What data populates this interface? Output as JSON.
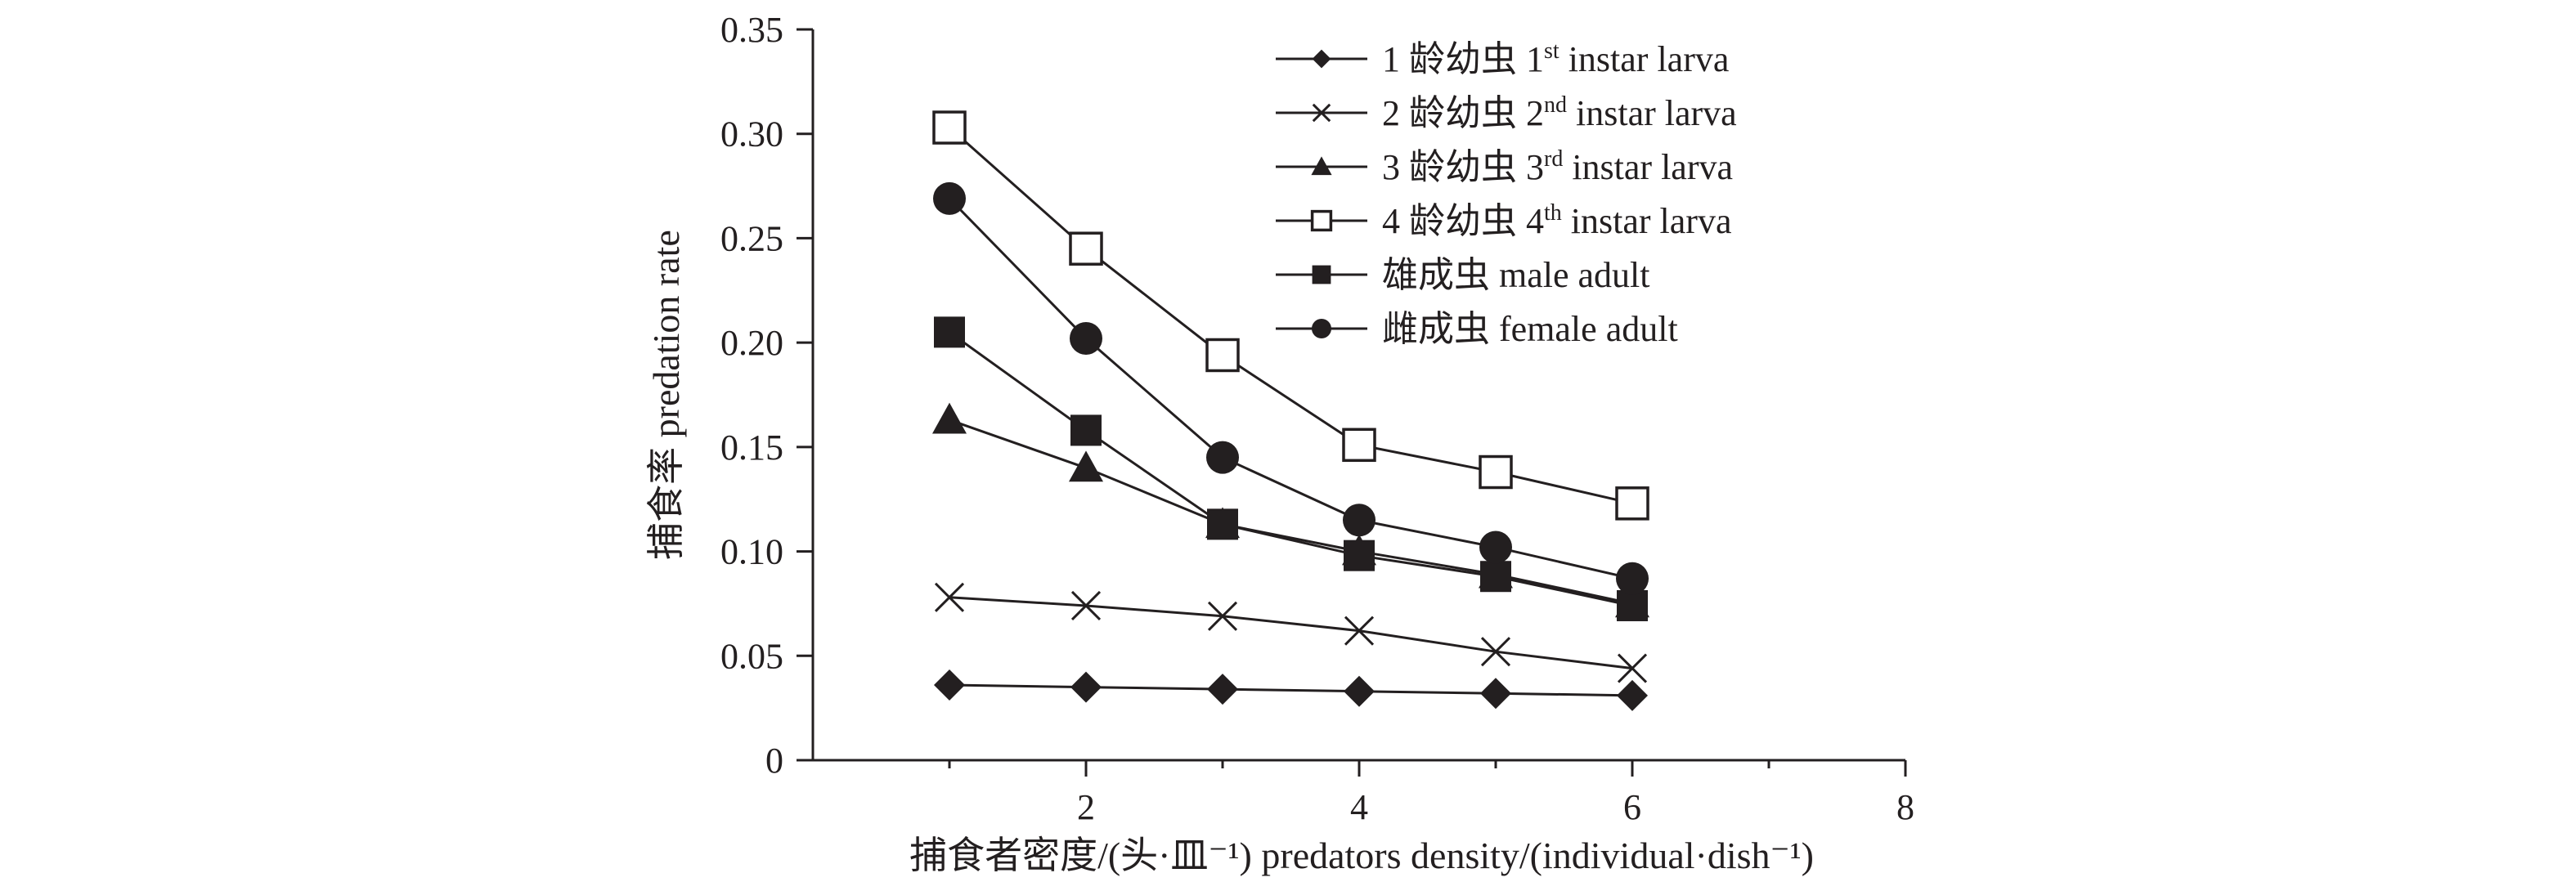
{
  "chart_data": {
    "type": "line",
    "title": "",
    "xlabel": "捕食者密度/(头·皿⁻¹) predators density/(individual·dish⁻¹)",
    "ylabel": "捕食率 predation rate",
    "xlim": [
      0,
      8
    ],
    "ylim": [
      0,
      0.35
    ],
    "x_ticks": [
      "2",
      "4",
      "6",
      "8"
    ],
    "y_ticks": [
      "0",
      "0.05",
      "0.10",
      "0.15",
      "0.20",
      "0.25",
      "0.30",
      "0.35"
    ],
    "grid": false,
    "legend_position": "top-right",
    "x": [
      1,
      2,
      3,
      4,
      5,
      6
    ],
    "series": [
      {
        "name_main": "1 龄幼虫 1",
        "name_sup": "st",
        "name_tail": " instar larva",
        "marker": "diamond-filled",
        "values": [
          0.036,
          0.035,
          0.034,
          0.033,
          0.032,
          0.031
        ]
      },
      {
        "name_main": "2 龄幼虫 2",
        "name_sup": "nd",
        "name_tail": " instar larva",
        "marker": "x",
        "values": [
          0.078,
          0.074,
          0.069,
          0.062,
          0.052,
          0.044
        ]
      },
      {
        "name_main": "3 龄幼虫 3",
        "name_sup": "rd",
        "name_tail": " instar larva",
        "marker": "triangle-filled",
        "values": [
          0.163,
          0.14,
          0.113,
          0.1,
          0.089,
          0.075
        ]
      },
      {
        "name_main": "4 龄幼虫 4",
        "name_sup": "th",
        "name_tail": " instar larva",
        "marker": "square-open",
        "values": [
          0.303,
          0.245,
          0.194,
          0.151,
          0.138,
          0.123
        ]
      },
      {
        "name_main": "雄成虫 male adult",
        "name_sup": "",
        "name_tail": "",
        "marker": "square-filled",
        "values": [
          0.205,
          0.158,
          0.113,
          0.098,
          0.088,
          0.074
        ]
      },
      {
        "name_main": "雌成虫 female adult",
        "name_sup": "",
        "name_tail": "",
        "marker": "circle-filled",
        "values": [
          0.269,
          0.202,
          0.145,
          0.115,
          0.102,
          0.087
        ]
      }
    ],
    "colors": {
      "ink": "#231f20",
      "background": "#ffffff"
    }
  }
}
